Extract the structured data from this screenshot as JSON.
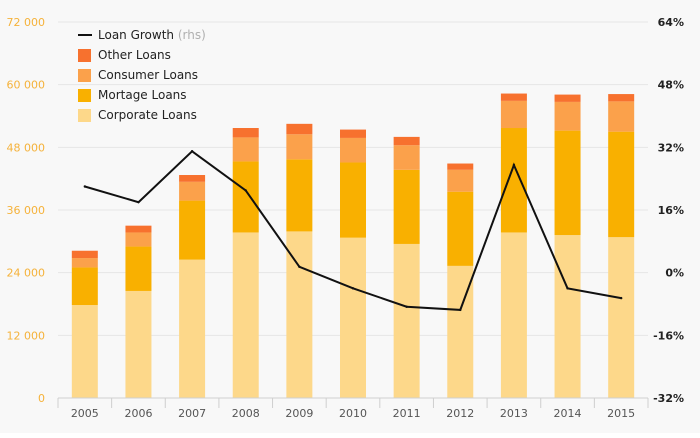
{
  "chart_data": {
    "type": "bar",
    "stacked": true,
    "categories": [
      "2005",
      "2006",
      "2007",
      "2008",
      "2009",
      "2010",
      "2011",
      "2012",
      "2013",
      "2014",
      "2015"
    ],
    "series": [
      {
        "name": "Corporate Loans",
        "color": "#fdd88a",
        "values": [
          17800,
          20500,
          26500,
          31700,
          31900,
          30700,
          29500,
          25300,
          31700,
          31200,
          30800
        ]
      },
      {
        "name": "Mortage Loans",
        "color": "#f9b000",
        "values": [
          7200,
          8500,
          11300,
          13600,
          13800,
          14400,
          14200,
          14200,
          20000,
          20000,
          20200
        ]
      },
      {
        "name": "Consumer Loans",
        "color": "#fba14b",
        "values": [
          1800,
          2700,
          3600,
          4600,
          4800,
          4700,
          4700,
          4200,
          5200,
          5500,
          5800
        ]
      },
      {
        "name": "Other Loans",
        "color": "#f7712e",
        "values": [
          1400,
          1300,
          1300,
          1800,
          2000,
          1600,
          1600,
          1200,
          1400,
          1400,
          1400
        ]
      }
    ],
    "line": {
      "name": "Loan Growth",
      "suffix": "(rhs)",
      "color": "#111111",
      "values": [
        22,
        18,
        31,
        21,
        1.5,
        -4,
        -8.7,
        -9.5,
        27.5,
        -4,
        -6.5
      ]
    },
    "y_left": {
      "min": 0,
      "max": 72000,
      "ticks": [
        0,
        12000,
        24000,
        36000,
        48000,
        60000,
        72000
      ],
      "tick_labels": [
        "0",
        "12 000",
        "24 000",
        "36 000",
        "48 000",
        "60 000",
        "72 000"
      ]
    },
    "y_right": {
      "min": -32,
      "max": 64,
      "ticks": [
        -32,
        -16,
        0,
        16,
        32,
        48,
        64
      ],
      "tick_labels": [
        "-32%",
        "-16%",
        "0%",
        "16%",
        "32%",
        "48%",
        "64%"
      ]
    },
    "legend": {
      "placement": "top-left",
      "order": [
        "line",
        "Other Loans",
        "Consumer Loans",
        "Mortage Loans",
        "Corporate Loans"
      ]
    },
    "grid": true,
    "colors": {
      "left_axis_text": "#f5b23a",
      "right_axis_text": "#222222",
      "grid": "#e6e6e6",
      "background": "#f8f8f8"
    }
  }
}
